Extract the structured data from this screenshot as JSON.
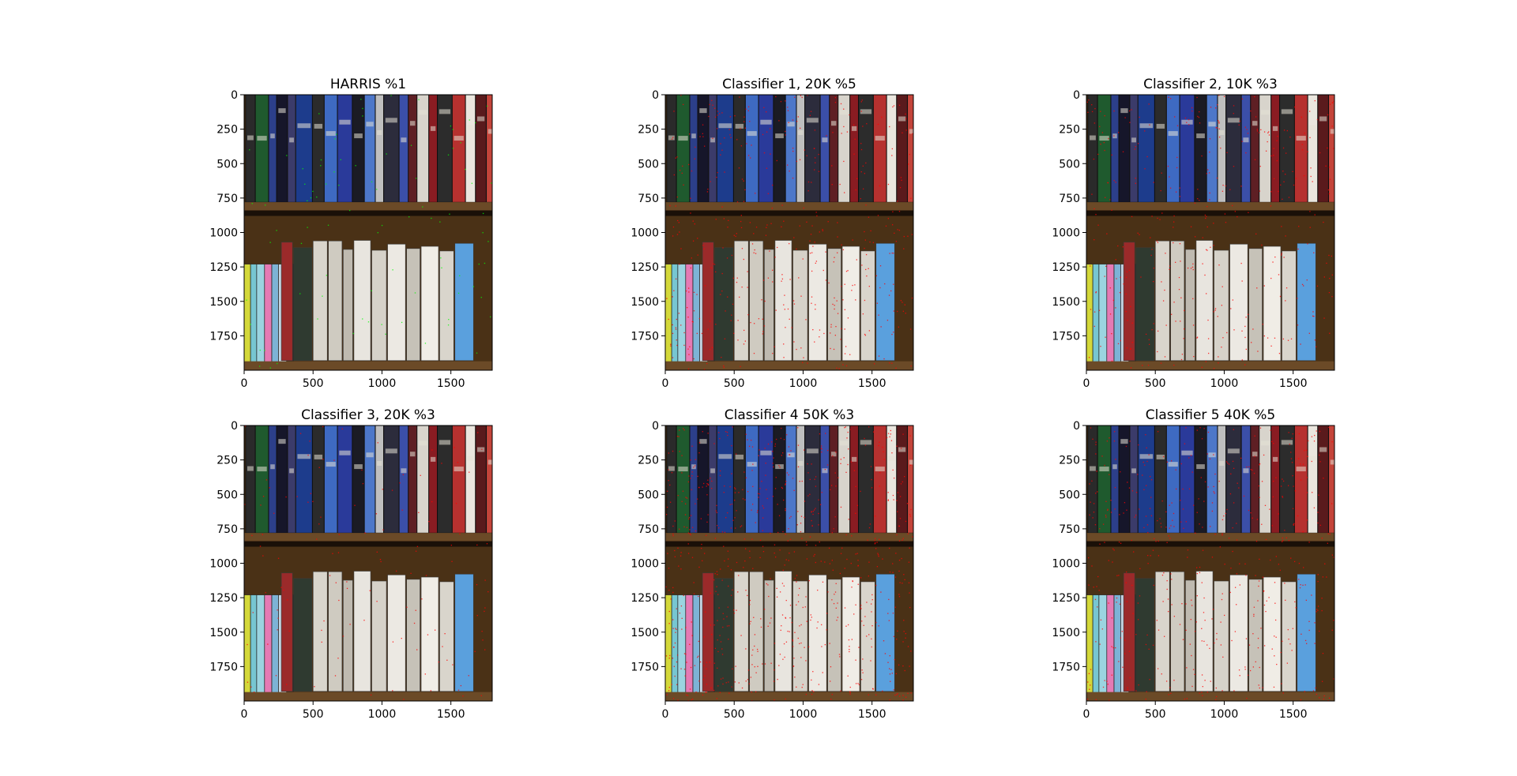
{
  "figure": {
    "background": "#ffffff",
    "colors": {
      "shelf_wood": "#4a3116",
      "shelf_plank": "#6b4a27",
      "shelf_shadow": "#1a1008",
      "wall": "#3a2610",
      "marker": "#ff0000"
    }
  },
  "chart_data": [
    {
      "type": "image",
      "title": "HARRIS %1",
      "detector": "harris",
      "marker_density": 0.1,
      "xlim": [
        0,
        1800
      ],
      "ylim": [
        2000,
        0
      ],
      "xticks": [
        0,
        500,
        1000,
        1500
      ],
      "yticks": [
        0,
        250,
        500,
        750,
        1000,
        1250,
        1500,
        1750
      ],
      "marker_color": "#00ff00"
    },
    {
      "type": "image",
      "title": "Classifier 1, 20K %5",
      "detector": "classifier",
      "marker_density": 0.55,
      "xlim": [
        0,
        1800
      ],
      "ylim": [
        2000,
        0
      ],
      "xticks": [
        0,
        500,
        1000,
        1500
      ],
      "yticks": [
        0,
        250,
        500,
        750,
        1000,
        1250,
        1500,
        1750
      ],
      "marker_color": "#ff0000"
    },
    {
      "type": "image",
      "title": "Classifier 2, 10K %3",
      "detector": "classifier",
      "marker_density": 0.45,
      "xlim": [
        0,
        1800
      ],
      "ylim": [
        2000,
        0
      ],
      "xticks": [
        0,
        500,
        1000,
        1500
      ],
      "yticks": [
        0,
        250,
        500,
        750,
        1000,
        1250,
        1500,
        1750
      ],
      "marker_color": "#ff0000"
    },
    {
      "type": "image",
      "title": "Classifier 3, 20K %3",
      "detector": "classifier",
      "marker_density": 0.15,
      "xlim": [
        0,
        1800
      ],
      "ylim": [
        2000,
        0
      ],
      "xticks": [
        0,
        500,
        1000,
        1500
      ],
      "yticks": [
        0,
        250,
        500,
        750,
        1000,
        1250,
        1500,
        1750
      ],
      "marker_color": "#ff0000"
    },
    {
      "type": "image",
      "title": "Classifier 4 50K %3",
      "detector": "classifier",
      "marker_density": 0.9,
      "xlim": [
        0,
        1800
      ],
      "ylim": [
        2000,
        0
      ],
      "xticks": [
        0,
        500,
        1000,
        1500
      ],
      "yticks": [
        0,
        250,
        500,
        750,
        1000,
        1250,
        1500,
        1750
      ],
      "marker_color": "#ff0000"
    },
    {
      "type": "image",
      "title": "Classifier 5 40K %5",
      "detector": "classifier",
      "marker_density": 0.6,
      "xlim": [
        0,
        1800
      ],
      "ylim": [
        2000,
        0
      ],
      "xticks": [
        0,
        500,
        1000,
        1500
      ],
      "yticks": [
        0,
        250,
        500,
        750,
        1000,
        1250,
        1500,
        1750
      ],
      "marker_color": "#ff0000"
    }
  ]
}
